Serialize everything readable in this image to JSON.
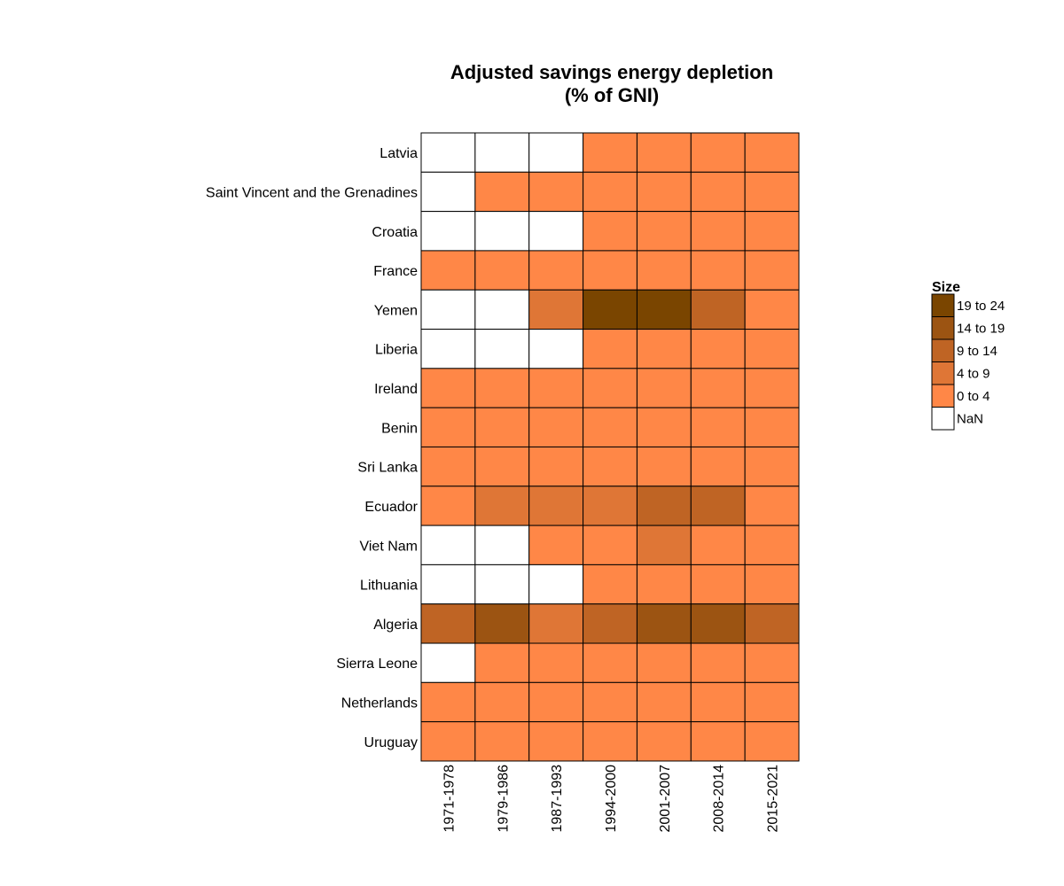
{
  "chart_data": {
    "type": "heatmap",
    "title": [
      "Adjusted savings energy depletion",
      "(% of GNI)"
    ],
    "columns": [
      "1971-1978",
      "1979-1986",
      "1987-1993",
      "1994-2000",
      "2001-2007",
      "2008-2014",
      "2015-2021"
    ],
    "rows": [
      "Latvia",
      "Saint Vincent and the Grenadines",
      "Croatia",
      "France",
      "Yemen",
      "Liberia",
      "Ireland",
      "Benin",
      "Sri Lanka",
      "Ecuador",
      "Viet Nam",
      "Lithuania",
      "Algeria",
      "Sierra Leone",
      "Netherlands",
      "Uruguay"
    ],
    "bins": [
      [
        -1,
        -1,
        -1,
        0,
        0,
        0,
        0
      ],
      [
        -1,
        0,
        0,
        0,
        0,
        0,
        0
      ],
      [
        -1,
        -1,
        -1,
        0,
        0,
        0,
        0
      ],
      [
        0,
        0,
        0,
        0,
        0,
        0,
        0
      ],
      [
        -1,
        -1,
        1,
        4,
        4,
        2,
        0
      ],
      [
        -1,
        -1,
        -1,
        0,
        0,
        0,
        0
      ],
      [
        0,
        0,
        0,
        0,
        0,
        0,
        0
      ],
      [
        0,
        0,
        0,
        0,
        0,
        0,
        0
      ],
      [
        0,
        0,
        0,
        0,
        0,
        0,
        0
      ],
      [
        0,
        1,
        1,
        1,
        2,
        2,
        0
      ],
      [
        -1,
        -1,
        0,
        0,
        1,
        0,
        0
      ],
      [
        -1,
        -1,
        -1,
        0,
        0,
        0,
        0
      ],
      [
        2,
        3,
        1,
        2,
        3,
        3,
        2
      ],
      [
        -1,
        0,
        0,
        0,
        0,
        0,
        0
      ],
      [
        0,
        0,
        0,
        0,
        0,
        0,
        0
      ],
      [
        0,
        0,
        0,
        0,
        0,
        0,
        0
      ]
    ],
    "legend": {
      "title": "Size",
      "placement": "right",
      "items": [
        {
          "label": "19 to 24",
          "color": "#7a4500"
        },
        {
          "label": "14 to 19",
          "color": "#9c5412"
        },
        {
          "label": "9 to 14",
          "color": "#bf6424"
        },
        {
          "label": "4 to 9",
          "color": "#df7636"
        },
        {
          "label": "0 to 4",
          "color": "#ff8747"
        },
        {
          "label": "NaN",
          "color": "#ffffff"
        }
      ]
    },
    "bin_colors": {
      "-1": "#ffffff",
      "0": "#ff8747",
      "1": "#df7636",
      "2": "#bf6424",
      "3": "#9c5412",
      "4": "#7a4500"
    }
  }
}
